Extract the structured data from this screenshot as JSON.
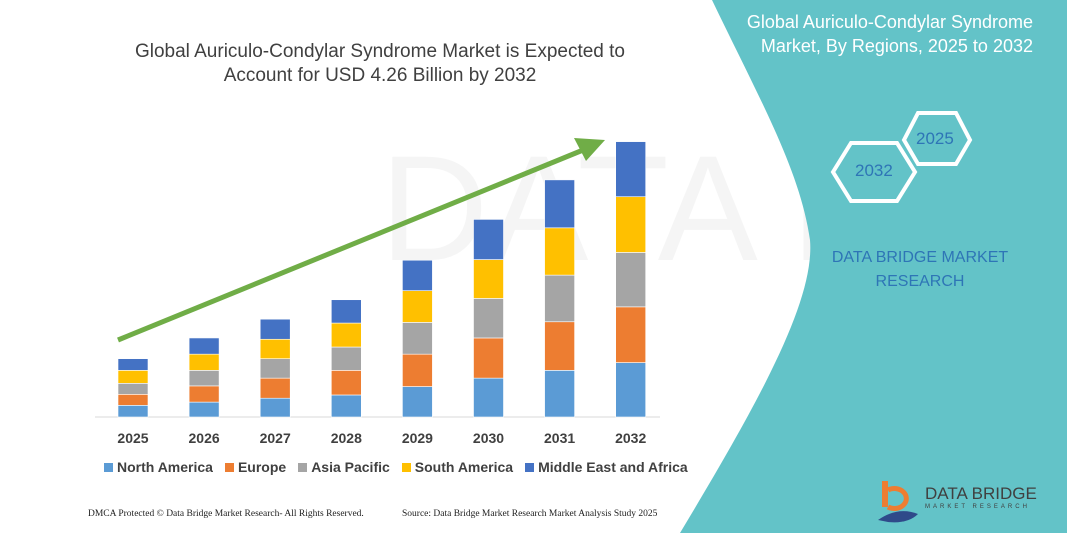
{
  "header": {
    "title_line1": "Global Auriculo-Condylar Syndrome Market is Expected to",
    "title_line2": "Account for USD 4.26 Billion by 2032",
    "right_title_line1": "Global Auriculo-Condylar Syndrome",
    "right_title_line2": "Market, By Regions, 2025 to 2032"
  },
  "hexagons": {
    "front": "2032",
    "back": "2025"
  },
  "brand": {
    "line1": "DATA BRIDGE MARKET",
    "line2": "RESEARCH",
    "logo_text": "DATA BRIDGE",
    "logo_sub": "MARKET RESEARCH"
  },
  "footer": {
    "left": "DMCA Protected © Data Bridge Market Research-  All Rights Reserved.",
    "right": "Source: Data Bridge Market Research  Market Analysis Study 2025"
  },
  "colors": {
    "panel": "#63c3c8",
    "arrow": "#70ad47"
  },
  "chart_data": {
    "type": "bar",
    "stacked": true,
    "title": "Global Auriculo-Condylar Syndrome Market is Expected to Account for USD 4.26 Billion by 2032",
    "categories": [
      "2025",
      "2026",
      "2027",
      "2028",
      "2029",
      "2030",
      "2031",
      "2032"
    ],
    "series": [
      {
        "name": "North America",
        "color": "#5b9bd5",
        "values": [
          0.18,
          0.23,
          0.29,
          0.34,
          0.47,
          0.6,
          0.72,
          0.84
        ]
      },
      {
        "name": "Europe",
        "color": "#ed7d31",
        "values": [
          0.17,
          0.25,
          0.31,
          0.38,
          0.5,
          0.62,
          0.75,
          0.86
        ]
      },
      {
        "name": "Asia Pacific",
        "color": "#a5a5a5",
        "values": [
          0.17,
          0.24,
          0.3,
          0.36,
          0.49,
          0.61,
          0.72,
          0.84
        ]
      },
      {
        "name": "South America",
        "color": "#ffc000",
        "values": [
          0.2,
          0.25,
          0.3,
          0.37,
          0.49,
          0.6,
          0.73,
          0.86
        ]
      },
      {
        "name": "Middle East and Africa",
        "color": "#4472c4",
        "values": [
          0.18,
          0.25,
          0.31,
          0.36,
          0.47,
          0.62,
          0.74,
          0.85
        ]
      }
    ],
    "ylim": [
      0,
      4.26
    ],
    "grid": false,
    "legend": "bottom",
    "trend_arrow": true
  }
}
